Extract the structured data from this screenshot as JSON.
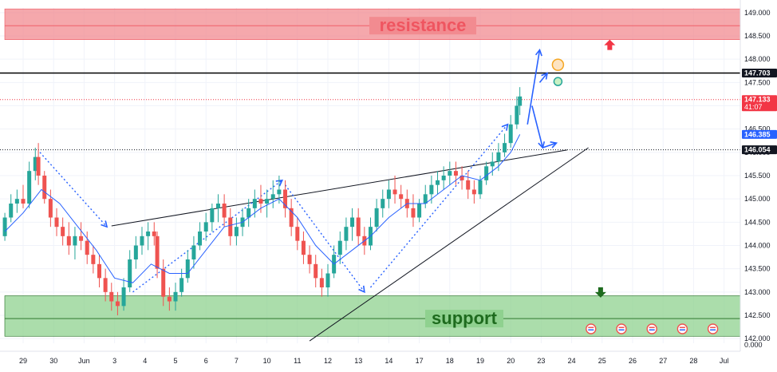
{
  "chart_data": {
    "type": "candlestick",
    "x_ticks": [
      "29",
      "30",
      "Jun",
      "3",
      "4",
      "5",
      "6",
      "7",
      "10",
      "11",
      "12",
      "13",
      "14",
      "17",
      "18",
      "19",
      "20",
      "23",
      "24",
      "25",
      "26",
      "27",
      "28",
      "Jul"
    ],
    "y_ticks": [
      "149.000",
      "148.500",
      "148.000",
      "147.500",
      "147.000",
      "146.500",
      "146.000",
      "145.500",
      "145.000",
      "144.500",
      "144.000",
      "143.500",
      "143.000",
      "142.500",
      "142.000"
    ],
    "y_range": [
      141.9,
      149.1
    ],
    "zero_label": "0.000",
    "zones": [
      {
        "name": "resistance",
        "label": "resistance",
        "from": 148.42,
        "to": 149.08,
        "mid": 148.72,
        "color": "#f28b90",
        "text_color": "#ef5560"
      },
      {
        "name": "support",
        "label": "support",
        "from": 142.05,
        "to": 142.92,
        "mid": 142.43,
        "color": "#8fd18f",
        "text_color": "#1e6b1e"
      }
    ],
    "price_labels": [
      {
        "name": "level-147703",
        "value": 147.703,
        "text": "147.703",
        "bg": "#131722",
        "fg": "#ffffff"
      },
      {
        "name": "last-price",
        "value": 147.133,
        "text": "147.133",
        "sub": "41:07",
        "bg": "#f23645",
        "fg": "#ffffff"
      },
      {
        "name": "ma-value",
        "value": 146.385,
        "text": "146.385",
        "bg": "#2962ff",
        "fg": "#ffffff"
      },
      {
        "name": "level-146054",
        "value": 146.054,
        "text": "146.054",
        "bg": "#131722",
        "fg": "#ffffff"
      }
    ],
    "horizontal_lines": [
      {
        "value": 147.703,
        "style": "solid",
        "color": "#000000"
      },
      {
        "value": 147.133,
        "style": "dotted",
        "color": "#f23645"
      },
      {
        "value": 146.054,
        "style": "dotted",
        "color": "#131722"
      }
    ],
    "trendlines": [
      {
        "name": "upper-wedge-line",
        "from": [
          2.9,
          144.42
        ],
        "to": [
          17.85,
          146.05
        ]
      },
      {
        "name": "lower-wedge-line",
        "from": [
          9.4,
          141.95
        ],
        "to": [
          18.55,
          146.1
        ]
      }
    ],
    "path_projection": [
      [
        2.75,
        146.14
      ],
      [
        0.7,
        141.7
      ]
    ],
    "candles_ohlc": [
      [
        -0.6,
        144.2,
        144.7,
        144.1,
        144.6
      ],
      [
        -0.4,
        144.6,
        145.1,
        144.5,
        144.9
      ],
      [
        -0.2,
        144.9,
        145.2,
        144.7,
        145.0
      ],
      [
        0.0,
        145.0,
        145.3,
        144.8,
        144.9
      ],
      [
        0.2,
        144.9,
        145.8,
        144.8,
        145.6
      ],
      [
        0.4,
        145.6,
        146.1,
        145.4,
        145.9
      ],
      [
        0.5,
        145.9,
        146.2,
        145.3,
        145.5
      ],
      [
        0.7,
        145.5,
        145.6,
        144.9,
        145.0
      ],
      [
        0.9,
        145.0,
        145.2,
        144.4,
        144.6
      ],
      [
        1.1,
        144.6,
        144.8,
        144.2,
        144.4
      ],
      [
        1.3,
        144.4,
        144.6,
        144.0,
        144.2
      ],
      [
        1.5,
        144.2,
        144.5,
        143.8,
        144.0
      ],
      [
        1.7,
        144.0,
        144.4,
        143.7,
        144.2
      ],
      [
        1.9,
        144.2,
        144.5,
        143.9,
        144.1
      ],
      [
        2.1,
        144.1,
        144.3,
        143.6,
        143.8
      ],
      [
        2.3,
        143.8,
        144.0,
        143.4,
        143.6
      ],
      [
        2.5,
        143.6,
        143.8,
        143.1,
        143.3
      ],
      [
        2.7,
        143.3,
        143.5,
        142.8,
        143.0
      ],
      [
        2.9,
        143.0,
        143.2,
        142.6,
        142.8
      ],
      [
        3.1,
        142.8,
        143.0,
        142.5,
        142.7
      ],
      [
        3.3,
        142.7,
        143.3,
        142.6,
        143.1
      ],
      [
        3.5,
        143.1,
        143.9,
        143.0,
        143.7
      ],
      [
        3.7,
        143.7,
        144.2,
        143.5,
        144.0
      ],
      [
        3.9,
        144.0,
        144.4,
        143.8,
        144.2
      ],
      [
        4.1,
        144.2,
        144.5,
        143.9,
        144.3
      ],
      [
        4.3,
        144.3,
        144.5,
        144.0,
        144.2
      ],
      [
        4.4,
        144.2,
        144.3,
        143.3,
        143.5
      ],
      [
        4.6,
        143.5,
        143.7,
        142.7,
        142.9
      ],
      [
        4.8,
        142.9,
        143.1,
        142.6,
        142.8
      ],
      [
        5.0,
        142.8,
        143.2,
        142.6,
        143.0
      ],
      [
        5.2,
        143.0,
        143.5,
        142.9,
        143.3
      ],
      [
        5.4,
        143.3,
        143.9,
        143.2,
        143.7
      ],
      [
        5.6,
        143.7,
        144.2,
        143.5,
        144.0
      ],
      [
        5.8,
        144.0,
        144.5,
        143.9,
        144.3
      ],
      [
        6.0,
        144.3,
        144.7,
        144.1,
        144.5
      ],
      [
        6.2,
        144.5,
        144.9,
        144.3,
        144.8
      ],
      [
        6.4,
        144.8,
        145.1,
        144.5,
        144.9
      ],
      [
        6.6,
        144.9,
        145.1,
        144.4,
        144.6
      ],
      [
        6.8,
        144.6,
        144.8,
        144.0,
        144.2
      ],
      [
        7.0,
        144.2,
        144.6,
        144.0,
        144.4
      ],
      [
        7.2,
        144.4,
        144.8,
        144.2,
        144.6
      ],
      [
        7.4,
        144.6,
        145.0,
        144.4,
        144.8
      ],
      [
        7.6,
        144.8,
        145.2,
        144.6,
        145.0
      ],
      [
        7.8,
        145.0,
        145.3,
        144.7,
        144.9
      ],
      [
        8.0,
        144.9,
        145.2,
        144.6,
        145.0
      ],
      [
        8.2,
        145.0,
        145.4,
        144.8,
        145.1
      ],
      [
        8.4,
        145.1,
        145.5,
        144.9,
        145.2
      ],
      [
        8.6,
        145.2,
        145.4,
        144.6,
        144.8
      ],
      [
        8.8,
        144.8,
        145.0,
        144.2,
        144.4
      ],
      [
        9.0,
        144.4,
        144.6,
        143.9,
        144.1
      ],
      [
        9.2,
        144.1,
        144.3,
        143.6,
        143.8
      ],
      [
        9.4,
        143.8,
        144.0,
        143.4,
        143.6
      ],
      [
        9.6,
        143.6,
        143.8,
        143.1,
        143.3
      ],
      [
        9.8,
        143.3,
        143.5,
        142.9,
        143.1
      ],
      [
        10.0,
        143.1,
        143.6,
        142.9,
        143.4
      ],
      [
        10.2,
        143.4,
        144.0,
        143.3,
        143.8
      ],
      [
        10.4,
        143.8,
        144.3,
        143.6,
        144.1
      ],
      [
        10.6,
        144.1,
        144.6,
        143.9,
        144.4
      ],
      [
        10.8,
        144.4,
        144.8,
        144.1,
        144.6
      ],
      [
        11.0,
        144.6,
        144.8,
        144.0,
        144.2
      ],
      [
        11.2,
        144.2,
        144.4,
        143.8,
        144.0
      ],
      [
        11.4,
        144.0,
        144.6,
        143.9,
        144.4
      ],
      [
        11.6,
        144.4,
        145.0,
        144.3,
        144.8
      ],
      [
        11.8,
        144.8,
        145.2,
        144.6,
        145.0
      ],
      [
        12.0,
        145.0,
        145.4,
        144.8,
        145.2
      ],
      [
        12.2,
        145.2,
        145.5,
        144.9,
        145.1
      ],
      [
        12.4,
        145.1,
        145.3,
        144.8,
        145.0
      ],
      [
        12.6,
        145.0,
        145.2,
        144.6,
        144.8
      ],
      [
        12.8,
        144.8,
        145.1,
        144.4,
        144.6
      ],
      [
        13.0,
        144.6,
        145.0,
        144.5,
        144.9
      ],
      [
        13.2,
        144.9,
        145.3,
        144.8,
        145.1
      ],
      [
        13.4,
        145.1,
        145.5,
        144.9,
        145.3
      ],
      [
        13.6,
        145.3,
        145.6,
        145.1,
        145.4
      ],
      [
        13.8,
        145.4,
        145.7,
        145.2,
        145.5
      ],
      [
        14.0,
        145.5,
        145.8,
        145.3,
        145.6
      ],
      [
        14.2,
        145.6,
        145.8,
        145.3,
        145.5
      ],
      [
        14.4,
        145.5,
        145.7,
        145.2,
        145.4
      ],
      [
        14.6,
        145.4,
        145.6,
        145.0,
        145.2
      ],
      [
        14.8,
        145.2,
        145.4,
        144.9,
        145.1
      ],
      [
        15.0,
        145.1,
        145.5,
        145.0,
        145.4
      ],
      [
        15.2,
        145.4,
        145.8,
        145.3,
        145.7
      ],
      [
        15.4,
        145.7,
        146.0,
        145.5,
        145.8
      ],
      [
        15.6,
        145.8,
        146.2,
        145.6,
        146.0
      ],
      [
        15.8,
        146.0,
        146.4,
        145.9,
        146.2
      ],
      [
        16.0,
        146.2,
        146.8,
        146.1,
        146.6
      ],
      [
        16.2,
        146.6,
        147.2,
        146.5,
        147.0
      ],
      [
        16.3,
        147.0,
        147.4,
        146.8,
        147.2
      ]
    ],
    "ma_series": [
      [
        -0.6,
        144.3
      ],
      [
        0.0,
        144.7
      ],
      [
        0.6,
        145.2
      ],
      [
        1.2,
        144.9
      ],
      [
        1.8,
        144.4
      ],
      [
        2.4,
        143.9
      ],
      [
        3.0,
        143.3
      ],
      [
        3.6,
        143.2
      ],
      [
        4.2,
        143.6
      ],
      [
        4.8,
        143.4
      ],
      [
        5.4,
        143.4
      ],
      [
        6.0,
        143.9
      ],
      [
        6.6,
        144.4
      ],
      [
        7.2,
        144.5
      ],
      [
        7.8,
        144.8
      ],
      [
        8.4,
        145.0
      ],
      [
        9.0,
        144.6
      ],
      [
        9.6,
        144.0
      ],
      [
        10.2,
        143.6
      ],
      [
        10.8,
        143.9
      ],
      [
        11.4,
        144.2
      ],
      [
        12.0,
        144.6
      ],
      [
        12.6,
        144.9
      ],
      [
        13.2,
        144.9
      ],
      [
        13.8,
        145.2
      ],
      [
        14.4,
        145.5
      ],
      [
        15.0,
        145.4
      ],
      [
        15.6,
        145.7
      ],
      [
        16.0,
        146.0
      ],
      [
        16.3,
        146.385
      ]
    ],
    "arrows": [
      {
        "name": "blue-arrow-up",
        "points": [
          [
            16.55,
            146.6
          ],
          [
            16.95,
            148.2
          ]
        ],
        "color": "#2962ff"
      },
      {
        "name": "blue-arrow-down",
        "points": [
          [
            16.7,
            147.0
          ],
          [
            17.05,
            146.1
          ]
        ],
        "color": "#2962ff"
      },
      {
        "name": "blue-arrow-short",
        "points": [
          [
            16.95,
            147.5
          ],
          [
            17.2,
            147.7
          ]
        ],
        "color": "#2962ff"
      },
      {
        "name": "blue-arrow-right",
        "points": [
          [
            17.05,
            146.1
          ],
          [
            17.5,
            146.2
          ]
        ],
        "color": "#2962ff"
      },
      {
        "name": "dotted-path-1",
        "points": [
          [
            0.55,
            146.0
          ],
          [
            2.75,
            144.4
          ]
        ],
        "color": "#2962ff"
      },
      {
        "name": "dotted-path-2",
        "points": [
          [
            3.6,
            143.0
          ],
          [
            8.5,
            145.4
          ]
        ],
        "color": "#2962ff"
      },
      {
        "name": "dotted-path-3",
        "points": [
          [
            8.6,
            145.3
          ],
          [
            11.2,
            143.0
          ]
        ],
        "color": "#2962ff"
      },
      {
        "name": "dotted-path-4",
        "points": [
          [
            11.4,
            143.1
          ],
          [
            15.9,
            146.6
          ]
        ],
        "color": "#2962ff"
      }
    ],
    "markers": [
      {
        "name": "orange-circle-marker",
        "x": 17.55,
        "y": 147.88,
        "r": 7,
        "stroke": "#f5a623",
        "fill": "#fde4c2"
      },
      {
        "name": "green-circle-marker",
        "x": 17.55,
        "y": 147.52,
        "r": 5,
        "stroke": "#26a69a",
        "fill": "#c9f1c4"
      },
      {
        "name": "red-up-arrow",
        "x": 19.25,
        "y": 148.3,
        "color": "#f23645"
      },
      {
        "name": "green-down-arrow",
        "x": 18.95,
        "y": 143.0,
        "color": "#1e6b1e"
      }
    ],
    "event_icons": [
      19.0,
      20.0,
      21.0,
      22.0,
      23.0
    ]
  }
}
